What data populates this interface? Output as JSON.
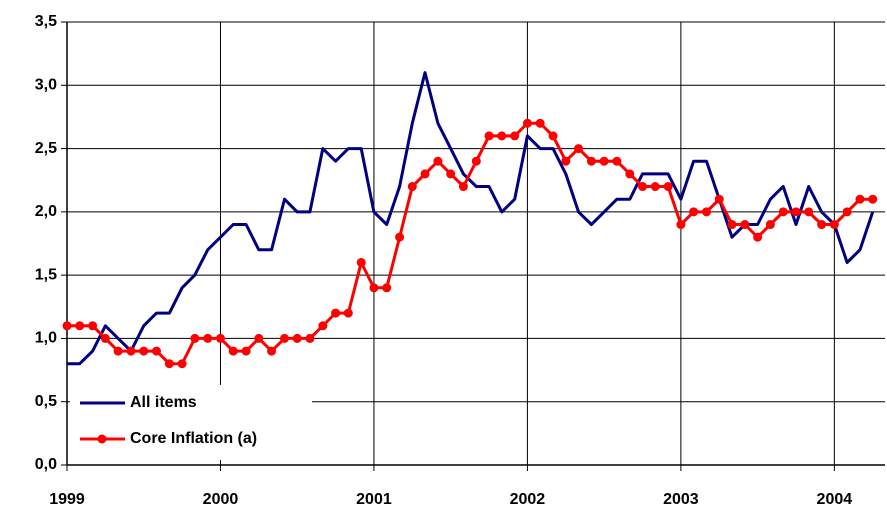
{
  "chart_data": {
    "type": "line",
    "x": [
      1999,
      1999.083,
      1999.167,
      1999.25,
      1999.333,
      1999.417,
      1999.5,
      1999.583,
      1999.667,
      1999.75,
      1999.833,
      1999.917,
      2000,
      2000.083,
      2000.167,
      2000.25,
      2000.333,
      2000.417,
      2000.5,
      2000.583,
      2000.667,
      2000.75,
      2000.833,
      2000.917,
      2001,
      2001.083,
      2001.167,
      2001.25,
      2001.333,
      2001.417,
      2001.5,
      2001.583,
      2001.667,
      2001.75,
      2001.833,
      2001.917,
      2002,
      2002.083,
      2002.167,
      2002.25,
      2002.333,
      2002.417,
      2002.5,
      2002.583,
      2002.667,
      2002.75,
      2002.833,
      2002.917,
      2003,
      2003.083,
      2003.167,
      2003.25,
      2003.333,
      2003.417,
      2003.5,
      2003.583,
      2003.667,
      2003.75,
      2003.833,
      2003.917,
      2004,
      2004.083,
      2004.167,
      2004.25
    ],
    "series": [
      {
        "name": "All items",
        "color": "#000080",
        "markers": false,
        "values": [
          0.8,
          0.8,
          0.9,
          1.1,
          1.0,
          0.9,
          1.1,
          1.2,
          1.2,
          1.4,
          1.5,
          1.7,
          1.8,
          1.9,
          1.9,
          1.7,
          1.7,
          2.1,
          2.0,
          2.0,
          2.5,
          2.4,
          2.5,
          2.5,
          2.0,
          1.9,
          2.2,
          2.7,
          3.1,
          2.7,
          2.5,
          2.3,
          2.2,
          2.2,
          2.0,
          2.1,
          2.6,
          2.5,
          2.5,
          2.3,
          2.0,
          1.9,
          2.0,
          2.1,
          2.1,
          2.3,
          2.3,
          2.3,
          2.1,
          2.4,
          2.4,
          2.1,
          1.8,
          1.9,
          1.9,
          2.1,
          2.2,
          1.9,
          2.2,
          2.0,
          1.9,
          1.6,
          1.7,
          2.0
        ]
      },
      {
        "name": "Core Inflation (a)",
        "color": "#ff0000",
        "markers": true,
        "values": [
          1.1,
          1.1,
          1.1,
          1.0,
          0.9,
          0.9,
          0.9,
          0.9,
          0.8,
          0.8,
          1.0,
          1.0,
          1.0,
          0.9,
          0.9,
          1.0,
          0.9,
          1.0,
          1.0,
          1.0,
          1.1,
          1.2,
          1.2,
          1.6,
          1.4,
          1.4,
          1.8,
          2.2,
          2.3,
          2.4,
          2.3,
          2.2,
          2.4,
          2.6,
          2.6,
          2.6,
          2.7,
          2.7,
          2.6,
          2.4,
          2.5,
          2.4,
          2.4,
          2.4,
          2.3,
          2.2,
          2.2,
          2.2,
          1.9,
          2.0,
          2.0,
          2.1,
          1.9,
          1.9,
          1.8,
          1.9,
          2.0,
          2.0,
          2.0,
          1.9,
          1.9,
          2.0,
          2.1,
          2.1
        ]
      }
    ],
    "xlim": [
      1999,
      2004.33
    ],
    "xticks": [
      1999,
      2000,
      2001,
      2002,
      2003,
      2004
    ],
    "ylim": [
      0,
      3.5
    ],
    "yticks": [
      {
        "value": 0,
        "label": "0,0"
      },
      {
        "value": 0.5,
        "label": "0,5"
      },
      {
        "value": 1,
        "label": "1,0"
      },
      {
        "value": 1.5,
        "label": "1,5"
      },
      {
        "value": 2,
        "label": "2,0"
      },
      {
        "value": 2.5,
        "label": "2,5"
      },
      {
        "value": 3,
        "label": "3,0"
      },
      {
        "value": 3.5,
        "label": "3,5"
      }
    ],
    "grid": true,
    "legend": "lower left"
  }
}
